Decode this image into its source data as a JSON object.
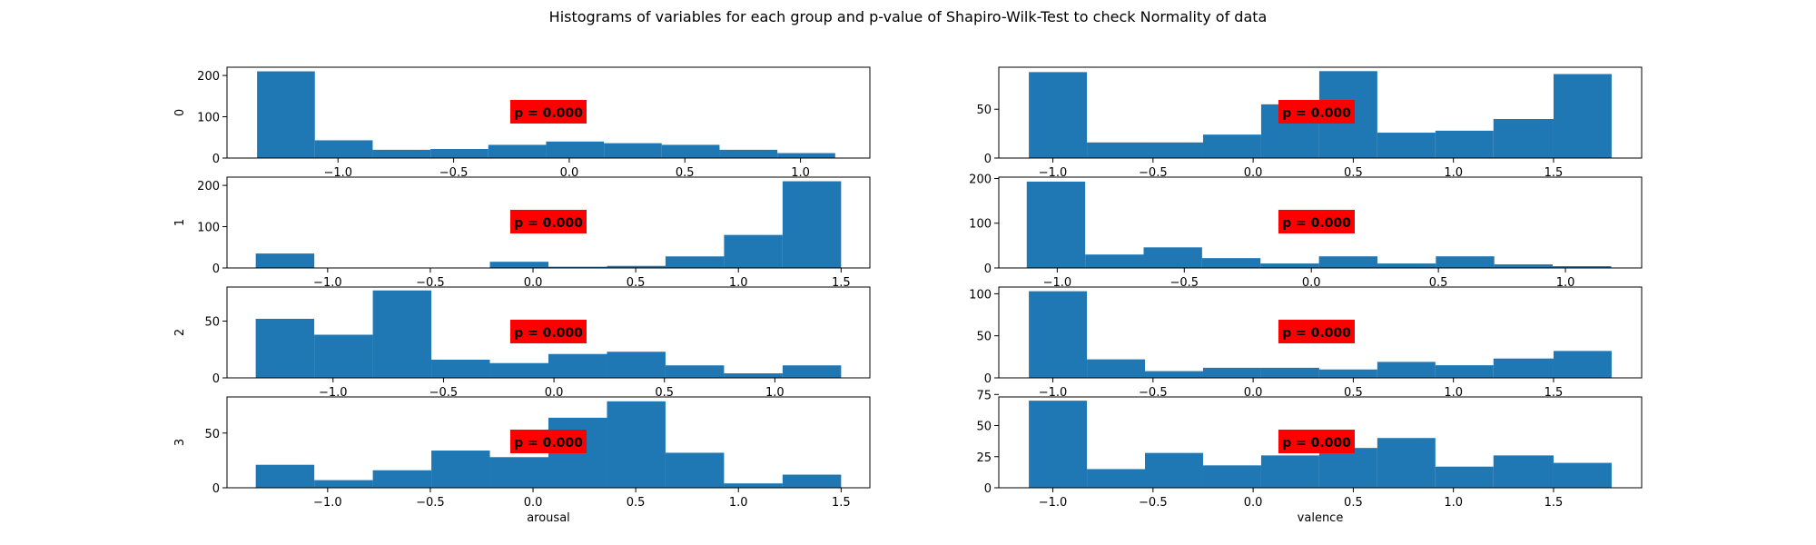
{
  "title": "Histograms of variables for each group and p-value of Shapiro-Wilk-Test to check Normality of data",
  "colors": {
    "bar": "#1f77b4",
    "pbox": "#ff0000",
    "axis": "#000000"
  },
  "chart_data": [
    {
      "type": "bar",
      "group": "0",
      "variable": "arousal",
      "ylabel": "0",
      "xlabel": "",
      "bin_edges": [
        -1.35,
        -1.1,
        -0.85,
        -0.6,
        -0.35,
        -0.1,
        0.15,
        0.4,
        0.65,
        0.9,
        1.15
      ],
      "values": [
        210,
        43,
        20,
        22,
        32,
        40,
        36,
        32,
        20,
        12
      ],
      "xlim": [
        -1.48,
        1.3
      ],
      "ylim": [
        0,
        220
      ],
      "xticks": [
        -1.0,
        -0.5,
        0.0,
        0.5,
        1.0
      ],
      "xtick_labels": [
        "−1.0",
        "−0.5",
        "0.0",
        "0.5",
        "1.0"
      ],
      "yticks": [
        0,
        100,
        200
      ],
      "ytick_labels": [
        "0",
        "100",
        "200"
      ],
      "annotation": "p = 0.000"
    },
    {
      "type": "bar",
      "group": "0",
      "variable": "valence",
      "ylabel": "",
      "xlabel": "",
      "bin_edges": [
        -1.12,
        -0.83,
        -0.54,
        -0.25,
        0.04,
        0.33,
        0.62,
        0.91,
        1.2,
        1.5,
        1.79
      ],
      "values": [
        88,
        16,
        16,
        24,
        55,
        89,
        26,
        28,
        40,
        86
      ],
      "xlim": [
        -1.27,
        1.94
      ],
      "ylim": [
        0,
        93
      ],
      "xticks": [
        -1.0,
        -0.5,
        0.0,
        0.5,
        1.0,
        1.5
      ],
      "xtick_labels": [
        "−1.0",
        "−0.5",
        "0.0",
        "0.5",
        "1.0",
        "1.5"
      ],
      "yticks": [
        0,
        50
      ],
      "ytick_labels": [
        "0",
        "50"
      ],
      "annotation": "p = 0.000"
    },
    {
      "type": "bar",
      "group": "1",
      "variable": "arousal",
      "ylabel": "1",
      "xlabel": "",
      "bin_edges": [
        -1.35,
        -1.065,
        -0.78,
        -0.495,
        -0.21,
        0.075,
        0.36,
        0.645,
        0.93,
        1.215,
        1.5
      ],
      "values": [
        35,
        0,
        0,
        0,
        15,
        3,
        5,
        28,
        80,
        210
      ],
      "xlim": [
        -1.49,
        1.64
      ],
      "ylim": [
        0,
        220
      ],
      "xticks": [
        -1.0,
        -0.5,
        0.0,
        0.5,
        1.0,
        1.5
      ],
      "xtick_labels": [
        "−1.0",
        "−0.5",
        "0.0",
        "0.5",
        "1.0",
        "1.5"
      ],
      "yticks": [
        0,
        100,
        200
      ],
      "ytick_labels": [
        "0",
        "100",
        "200"
      ],
      "annotation": "p = 0.000"
    },
    {
      "type": "bar",
      "group": "1",
      "variable": "valence",
      "ylabel": "",
      "xlabel": "",
      "bin_edges": [
        -1.12,
        -0.89,
        -0.66,
        -0.43,
        -0.2,
        0.03,
        0.26,
        0.49,
        0.72,
        0.95,
        1.18
      ],
      "values": [
        193,
        30,
        46,
        22,
        10,
        26,
        10,
        26,
        8,
        4
      ],
      "xlim": [
        -1.23,
        1.3
      ],
      "ylim": [
        0,
        203
      ],
      "xticks": [
        -1.0,
        -0.5,
        0.0,
        0.5,
        1.0
      ],
      "xtick_labels": [
        "−1.0",
        "−0.5",
        "0.0",
        "0.5",
        "1.0"
      ],
      "yticks": [
        0,
        100,
        200
      ],
      "ytick_labels": [
        "0",
        "100",
        "200"
      ],
      "annotation": "p = 0.000"
    },
    {
      "type": "bar",
      "group": "2",
      "variable": "arousal",
      "ylabel": "2",
      "xlabel": "",
      "bin_edges": [
        -1.35,
        -1.085,
        -0.82,
        -0.555,
        -0.29,
        -0.025,
        0.24,
        0.505,
        0.77,
        1.035,
        1.3
      ],
      "values": [
        52,
        38,
        77,
        16,
        13,
        21,
        23,
        11,
        4,
        11
      ],
      "xlim": [
        -1.48,
        1.43
      ],
      "ylim": [
        0,
        80
      ],
      "xticks": [
        -1.0,
        -0.5,
        0.0,
        0.5,
        1.0
      ],
      "xtick_labels": [
        "−1.0",
        "−0.5",
        "0.0",
        "0.5",
        "1.0"
      ],
      "yticks": [
        0,
        50
      ],
      "ytick_labels": [
        "0",
        "50"
      ],
      "annotation": "p = 0.000"
    },
    {
      "type": "bar",
      "group": "2",
      "variable": "valence",
      "ylabel": "",
      "xlabel": "",
      "bin_edges": [
        -1.12,
        -0.83,
        -0.54,
        -0.25,
        0.04,
        0.33,
        0.62,
        0.91,
        1.2,
        1.5,
        1.79
      ],
      "values": [
        103,
        22,
        8,
        12,
        12,
        10,
        19,
        15,
        23,
        32
      ],
      "xlim": [
        -1.27,
        1.94
      ],
      "ylim": [
        0,
        108
      ],
      "xticks": [
        -1.0,
        -0.5,
        0.0,
        0.5,
        1.0,
        1.5
      ],
      "xtick_labels": [
        "−1.0",
        "−0.5",
        "0.0",
        "0.5",
        "1.0",
        "1.5"
      ],
      "yticks": [
        0,
        50,
        100
      ],
      "ytick_labels": [
        "0",
        "50",
        "100"
      ],
      "annotation": "p = 0.000"
    },
    {
      "type": "bar",
      "group": "3",
      "variable": "arousal",
      "ylabel": "3",
      "xlabel": "arousal",
      "bin_edges": [
        -1.35,
        -1.065,
        -0.78,
        -0.495,
        -0.21,
        0.075,
        0.36,
        0.645,
        0.93,
        1.215,
        1.5
      ],
      "values": [
        21,
        7,
        16,
        34,
        28,
        64,
        79,
        32,
        4,
        12
      ],
      "xlim": [
        -1.49,
        1.64
      ],
      "ylim": [
        0,
        83
      ],
      "xticks": [
        -1.0,
        -0.5,
        0.0,
        0.5,
        1.0,
        1.5
      ],
      "xtick_labels": [
        "−1.0",
        "−0.5",
        "0.0",
        "0.5",
        "1.0",
        "1.5"
      ],
      "yticks": [
        0,
        50
      ],
      "ytick_labels": [
        "0",
        "50"
      ],
      "annotation": "p = 0.000"
    },
    {
      "type": "bar",
      "group": "3",
      "variable": "valence",
      "ylabel": "",
      "xlabel": "valence",
      "bin_edges": [
        -1.12,
        -0.83,
        -0.54,
        -0.25,
        0.04,
        0.33,
        0.62,
        0.91,
        1.2,
        1.5,
        1.79
      ],
      "values": [
        70,
        15,
        28,
        18,
        26,
        32,
        40,
        17,
        26,
        20
      ],
      "xlim": [
        -1.27,
        1.94
      ],
      "ylim": [
        0,
        73
      ],
      "xticks": [
        -1.0,
        -0.5,
        0.0,
        0.5,
        1.0,
        1.5
      ],
      "xtick_labels": [
        "−1.0",
        "−0.5",
        "0.0",
        "0.5",
        "1.0",
        "1.5"
      ],
      "yticks": [
        0,
        25,
        50,
        75
      ],
      "ytick_labels": [
        "0",
        "25",
        "50",
        "75"
      ],
      "annotation": "p = 0.000"
    }
  ]
}
